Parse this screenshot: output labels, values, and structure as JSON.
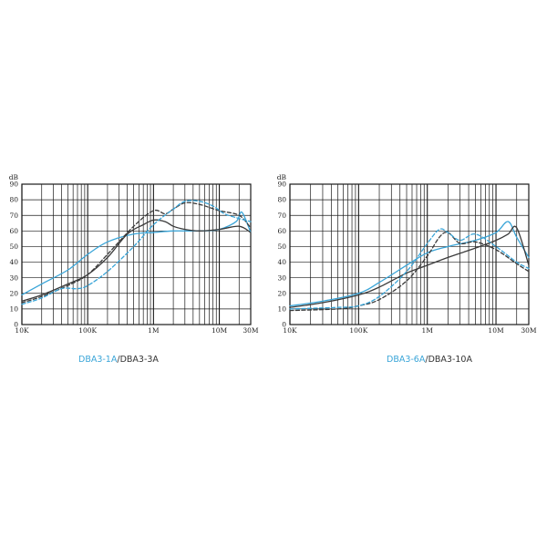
{
  "colors": {
    "blue": "#3aa5d8",
    "dark": "#3a3a3a",
    "grid": "#1a1a1a"
  },
  "charts": [
    {
      "caption": {
        "part_a": "DBA3-1A",
        "separator": "/",
        "part_b": "DBA3-3A"
      },
      "chart_data": {
        "type": "line",
        "xscale": "log",
        "xlim": [
          10000,
          30000000
        ],
        "ylim": [
          0,
          90
        ],
        "y_unit": "dB",
        "x_ticks": [
          {
            "value": 10000,
            "label": "10K"
          },
          {
            "value": 100000,
            "label": "100K"
          },
          {
            "value": 1000000,
            "label": "1M"
          },
          {
            "value": 10000000,
            "label": "10M"
          },
          {
            "value": 30000000,
            "label": "30M"
          }
        ],
        "y_ticks": [
          0,
          10,
          20,
          30,
          40,
          50,
          60,
          70,
          80,
          90
        ],
        "grid": true,
        "series": [
          {
            "color": "#3aa5d8",
            "style": "solid",
            "x": [
              10000,
              20000,
              50000,
              100000,
              200000,
              500000,
              1000000,
              2000000,
              5000000,
              10000000,
              18000000,
              22000000,
              30000000
            ],
            "y": [
              19,
              26,
              35,
              45,
              53,
              58,
              59,
              60,
              60,
              61,
              66,
              72,
              59
            ]
          },
          {
            "color": "#3a3a3a",
            "style": "solid",
            "x": [
              10000,
              20000,
              50000,
              100000,
              200000,
              400000,
              700000,
              1000000,
              1500000,
              2000000,
              3000000,
              5000000,
              10000000,
              20000000,
              30000000
            ],
            "y": [
              15,
              19,
              26,
              32,
              43,
              58,
              64,
              67,
              66,
              63,
              61,
              60,
              61,
              63,
              59
            ]
          },
          {
            "color": "#3a3a3a",
            "style": "dashed",
            "x": [
              10000,
              20000,
              50000,
              100000,
              200000,
              500000,
              1000000,
              1500000,
              2000000,
              3000000,
              5000000,
              10000000,
              20000000,
              30000000
            ],
            "y": [
              14,
              18,
              25,
              32,
              45,
              63,
              73,
              71,
              74,
              78,
              77,
              73,
              70,
              62
            ]
          },
          {
            "color": "#3aa5d8",
            "style": "dashed",
            "x": [
              10000,
              20000,
              40000,
              70000,
              100000,
              200000,
              500000,
              1000000,
              2000000,
              3000000,
              5000000,
              8000000,
              12000000,
              20000000,
              30000000
            ],
            "y": [
              13,
              17,
              23,
              23,
              25,
              34,
              50,
              64,
              74,
              79,
              79,
              76,
              71,
              68,
              66
            ]
          }
        ]
      }
    },
    {
      "caption": {
        "part_a": "DBA3-6A",
        "separator": "/",
        "part_b": "DBA3-10A"
      },
      "chart_data": {
        "type": "line",
        "xscale": "log",
        "xlim": [
          10000,
          30000000
        ],
        "ylim": [
          0,
          90
        ],
        "y_unit": "dB",
        "x_ticks": [
          {
            "value": 10000,
            "label": "10K"
          },
          {
            "value": 100000,
            "label": "100K"
          },
          {
            "value": 1000000,
            "label": "1M"
          },
          {
            "value": 10000000,
            "label": "10M"
          },
          {
            "value": 30000000,
            "label": "30M"
          }
        ],
        "y_ticks": [
          0,
          10,
          20,
          30,
          40,
          50,
          60,
          70,
          80,
          90
        ],
        "grid": true,
        "series": [
          {
            "color": "#3aa5d8",
            "style": "solid",
            "x": [
              10000,
              30000,
              100000,
              200000,
              500000,
              1000000,
              2000000,
              5000000,
              10000000,
              15000000,
              20000000,
              30000000
            ],
            "y": [
              12,
              15,
              20,
              27,
              38,
              46,
              50,
              54,
              59,
              66,
              56,
              43
            ]
          },
          {
            "color": "#3a3a3a",
            "style": "solid",
            "x": [
              10000,
              30000,
              100000,
              200000,
              500000,
              1000000,
              2000000,
              5000000,
              10000000,
              15000000,
              20000000,
              30000000
            ],
            "y": [
              11,
              14,
              19,
              24,
              33,
              38,
              43,
              49,
              54,
              58,
              62,
              38
            ]
          },
          {
            "color": "#3a3a3a",
            "style": "dashed",
            "x": [
              10000,
              50000,
              100000,
              200000,
              500000,
              1000000,
              1500000,
              2000000,
              3000000,
              5000000,
              10000000,
              20000000,
              30000000
            ],
            "y": [
              9,
              10,
              12,
              16,
              28,
              44,
              56,
              59,
              52,
              53,
              48,
              39,
              34
            ]
          },
          {
            "color": "#3aa5d8",
            "style": "dashed",
            "x": [
              10000,
              50000,
              100000,
              200000,
              500000,
              1000000,
              1500000,
              2000000,
              3000000,
              5000000,
              10000000,
              20000000,
              30000000
            ],
            "y": [
              10,
              11,
              12,
              18,
              34,
              52,
              61,
              59,
              54,
              58,
              50,
              40,
              36
            ]
          }
        ]
      }
    }
  ]
}
